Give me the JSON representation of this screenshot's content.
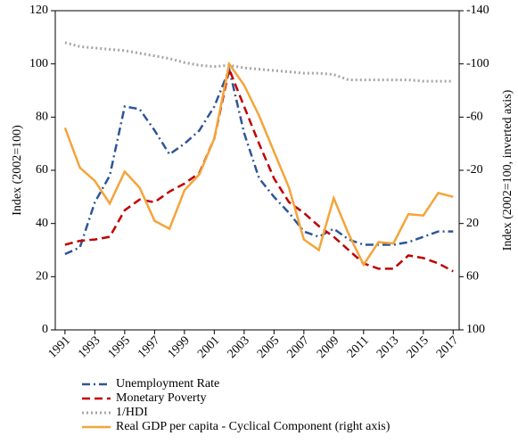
{
  "chart_data": {
    "type": "line",
    "x": [
      1991,
      1992,
      1993,
      1994,
      1995,
      1996,
      1997,
      1998,
      1999,
      2000,
      2001,
      2002,
      2003,
      2004,
      2005,
      2006,
      2007,
      2008,
      2009,
      2010,
      2011,
      2012,
      2013,
      2014,
      2015,
      2016,
      2017
    ],
    "xlim": [
      1990.35,
      2017.4
    ],
    "xticks": [
      1991,
      1993,
      1995,
      1997,
      1999,
      2001,
      2003,
      2005,
      2007,
      2009,
      2011,
      2013,
      2015,
      2017
    ],
    "ylabel": "Index (2002=100)",
    "ylim": [
      0,
      120
    ],
    "yticks": [
      0,
      20,
      40,
      60,
      80,
      100,
      120
    ],
    "y2label": "Index (2002=100, inverted axis)",
    "y2lim": [
      100,
      -140
    ],
    "y2ticks": [
      -140,
      -100,
      -60,
      -20,
      20,
      60,
      100
    ],
    "series": [
      {
        "name": "Unemployment Rate",
        "color": "#2e5597",
        "linestyle": "dashdot",
        "values": [
          28.5,
          31,
          48,
          58,
          84,
          83,
          75,
          66,
          70,
          75,
          84,
          98,
          74,
          57,
          50,
          44,
          37,
          35,
          38,
          34,
          32,
          32,
          32,
          33,
          35,
          37,
          37
        ]
      },
      {
        "name": "Monetary Poverty",
        "color": "#c00000",
        "linestyle": "dashed",
        "values": [
          32,
          33.5,
          34,
          35,
          45,
          49,
          48,
          52,
          55,
          59,
          72,
          98,
          84,
          70,
          57,
          48,
          44,
          39,
          35,
          30,
          25,
          23,
          23,
          28,
          27,
          25,
          22
        ]
      },
      {
        "name": "1/HDI",
        "color": "#a6a6a6",
        "linestyle": "dotted",
        "values": [
          108,
          106.5,
          106,
          105.5,
          105,
          104,
          103,
          102,
          100.5,
          99.5,
          99,
          99.5,
          98.5,
          98,
          97.5,
          97,
          96.5,
          96.5,
          96,
          94,
          94,
          94,
          94,
          94,
          93.5,
          93.5,
          93.5
        ]
      },
      {
        "name": "Real GDP per capita - Cyclical Component (right axis)",
        "color": "#f4a43a",
        "linestyle": "solid",
        "axis": "y2",
        "values": [
          -52,
          -22,
          -12,
          5,
          -19,
          -7,
          18,
          24,
          -5,
          -17,
          -44,
          -100,
          -84,
          -61,
          -34,
          -7,
          32,
          40,
          1,
          28,
          51,
          34,
          35,
          13,
          14,
          -3,
          0
        ]
      }
    ]
  }
}
